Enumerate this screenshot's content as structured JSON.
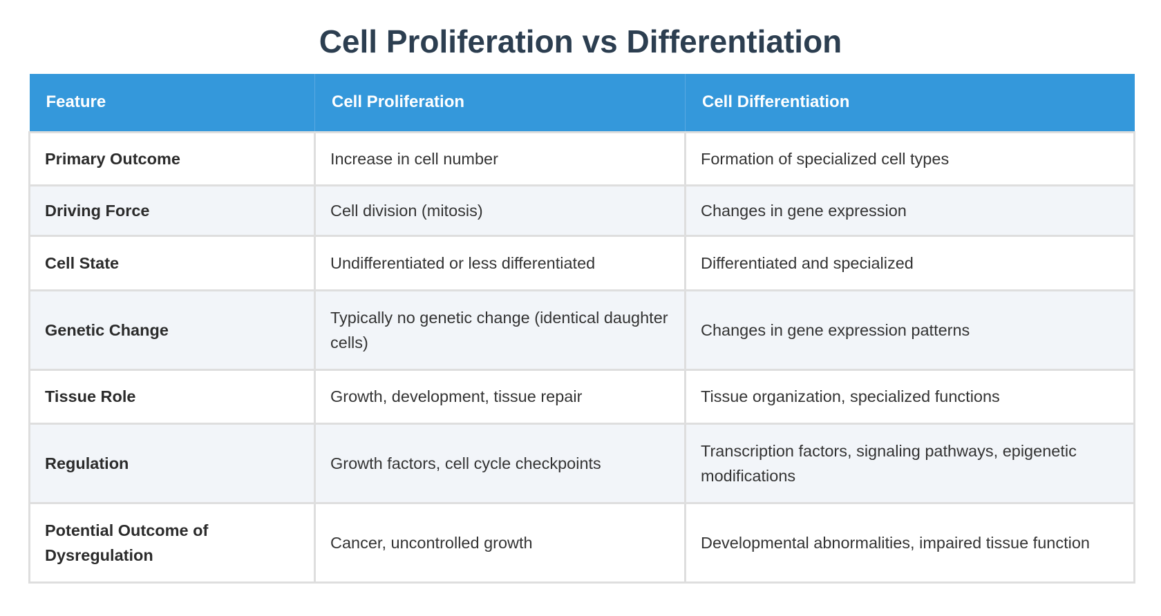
{
  "title": "Cell Proliferation vs Differentiation",
  "table": {
    "headers": [
      "Feature",
      "Cell Proliferation",
      "Cell Differentiation"
    ],
    "rows": [
      [
        "Primary Outcome",
        "Increase in cell number",
        "Formation of specialized cell types"
      ],
      [
        "Driving Force",
        "Cell division (mitosis)",
        "Changes in gene expression"
      ],
      [
        "Cell State",
        "Undifferentiated or less differentiated",
        "Differentiated and specialized"
      ],
      [
        "Genetic Change",
        "Typically no genetic change (identical daughter cells)",
        "Changes in gene expression patterns"
      ],
      [
        "Tissue Role",
        "Growth, development, tissue repair",
        "Tissue organization, specialized functions"
      ],
      [
        "Regulation",
        "Growth factors, cell cycle checkpoints",
        "Transcription factors, signaling pathways, epigenetic modifications"
      ],
      [
        "Potential Outcome of Dysregulation",
        "Cancer, uncontrolled growth",
        "Developmental abnormalities, impaired tissue function"
      ]
    ]
  },
  "colors": {
    "header_bg": "#3498db",
    "title": "#2c3e50",
    "alt_row": "#f2f5f9",
    "border": "#dedede"
  }
}
